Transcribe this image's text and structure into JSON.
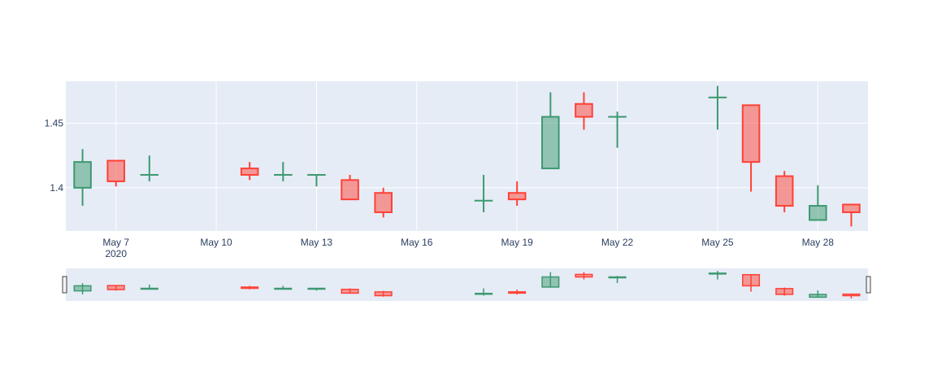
{
  "chart_data": {
    "type": "candlestick",
    "title": "",
    "xlabel": "",
    "ylabel": "",
    "x": [
      "2020-05-06",
      "2020-05-07",
      "2020-05-08",
      "2020-05-11",
      "2020-05-12",
      "2020-05-13",
      "2020-05-14",
      "2020-05-15",
      "2020-05-18",
      "2020-05-19",
      "2020-05-20",
      "2020-05-21",
      "2020-05-22",
      "2020-05-25",
      "2020-05-26",
      "2020-05-27",
      "2020-05-28",
      "2020-05-29"
    ],
    "open": [
      1.4,
      1.421,
      1.41,
      1.415,
      1.41,
      1.41,
      1.406,
      1.396,
      1.39,
      1.396,
      1.415,
      1.465,
      1.455,
      1.47,
      1.464,
      1.409,
      1.375,
      1.387
    ],
    "high": [
      1.43,
      1.421,
      1.425,
      1.42,
      1.42,
      1.41,
      1.41,
      1.4,
      1.41,
      1.405,
      1.474,
      1.474,
      1.459,
      1.479,
      1.464,
      1.413,
      1.402,
      1.387
    ],
    "low": [
      1.386,
      1.401,
      1.405,
      1.406,
      1.405,
      1.401,
      1.391,
      1.377,
      1.381,
      1.386,
      1.415,
      1.445,
      1.431,
      1.445,
      1.397,
      1.381,
      1.375,
      1.37
    ],
    "close": [
      1.42,
      1.405,
      1.41,
      1.41,
      1.41,
      1.41,
      1.391,
      1.381,
      1.39,
      1.391,
      1.455,
      1.455,
      1.455,
      1.47,
      1.42,
      1.386,
      1.386,
      1.381
    ],
    "xlim": [
      "2020-05-05T12:00",
      "2020-05-29T12:00"
    ],
    "ylim": [
      1.3665,
      1.4825
    ],
    "x_ticks": [
      {
        "date": "2020-05-07",
        "label": "May 7",
        "sublabel": "2020"
      },
      {
        "date": "2020-05-10",
        "label": "May 10",
        "sublabel": ""
      },
      {
        "date": "2020-05-13",
        "label": "May 13",
        "sublabel": ""
      },
      {
        "date": "2020-05-16",
        "label": "May 16",
        "sublabel": ""
      },
      {
        "date": "2020-05-19",
        "label": "May 19",
        "sublabel": ""
      },
      {
        "date": "2020-05-22",
        "label": "May 22",
        "sublabel": ""
      },
      {
        "date": "2020-05-25",
        "label": "May 25",
        "sublabel": ""
      },
      {
        "date": "2020-05-28",
        "label": "May 28",
        "sublabel": ""
      }
    ],
    "y_ticks": [
      {
        "value": 1.4,
        "label": "1.4"
      },
      {
        "value": 1.45,
        "label": "1.45"
      }
    ],
    "grid": true,
    "legend": "none",
    "rangeslider": true,
    "colors": {
      "increasing": "#3d9970",
      "increasing_fill": "rgba(61,153,112,0.5)",
      "decreasing": "#ff4136",
      "decreasing_fill": "rgba(255,65,54,0.5)",
      "plot_bg": "#e5ecf6",
      "grid": "#ffffff",
      "tick_text": "#2a3f5f"
    }
  }
}
